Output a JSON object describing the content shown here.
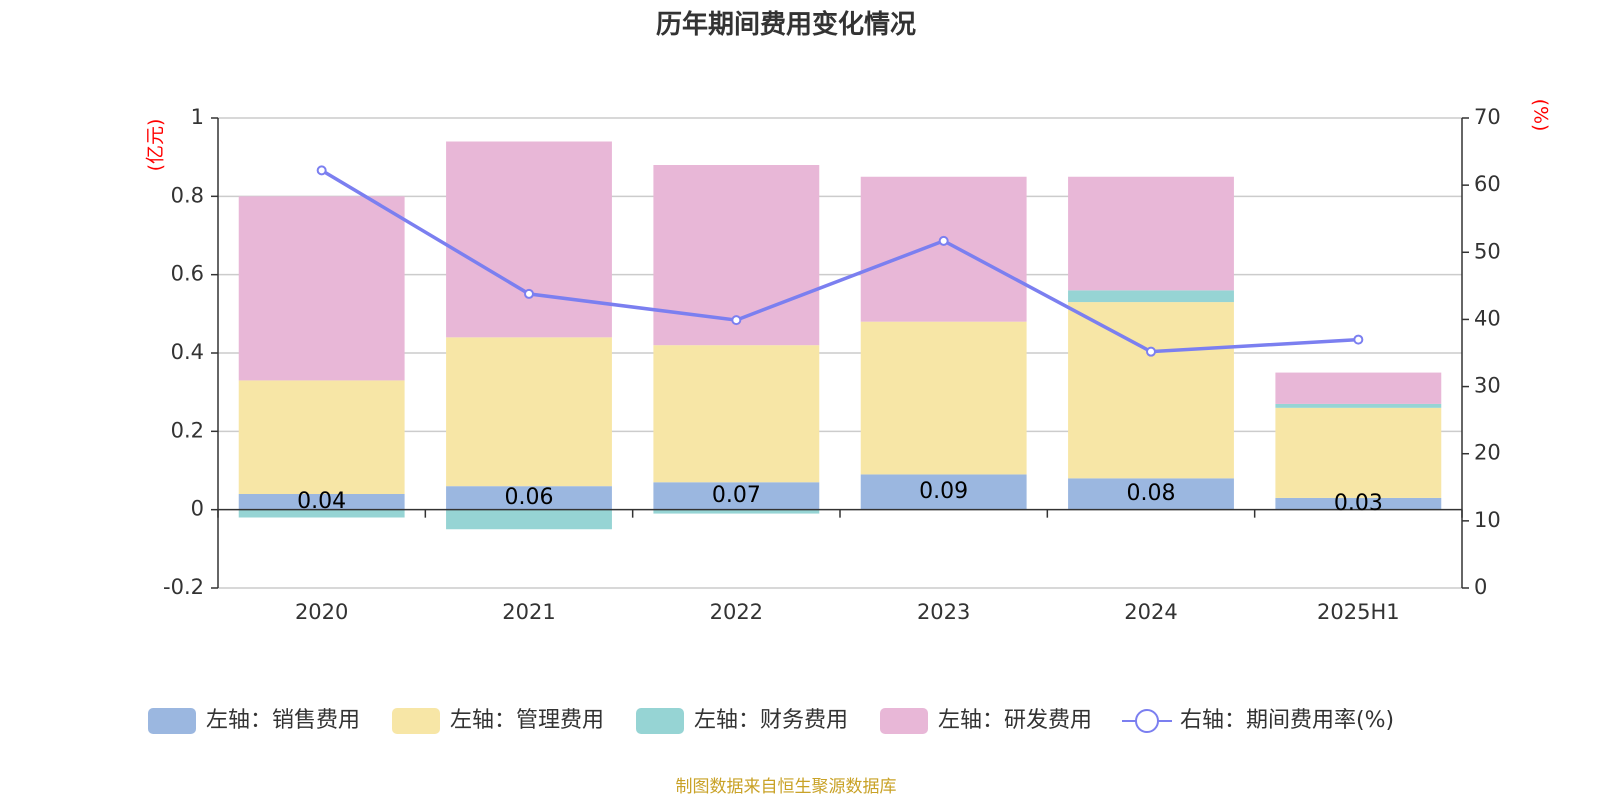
{
  "chart_data": {
    "type": "bar",
    "title": "历年期间费用变化情况",
    "categories": [
      "2020",
      "2021",
      "2022",
      "2023",
      "2024",
      "2025H1"
    ],
    "y_left": {
      "unit": "(亿元)",
      "ylim": [
        -0.2,
        1
      ],
      "ticks": [
        "1",
        "0.8",
        "0.6",
        "0.4",
        "0.2",
        "0",
        "-0.2"
      ],
      "tick_values": [
        1,
        0.8,
        0.6,
        0.4,
        0.2,
        0,
        -0.2
      ]
    },
    "y_right": {
      "unit": "(%)",
      "ylim": [
        0,
        70
      ],
      "ticks": [
        "70",
        "60",
        "50",
        "40",
        "30",
        "20",
        "10",
        "0"
      ],
      "tick_values": [
        70,
        60,
        50,
        40,
        30,
        20,
        10,
        0
      ]
    },
    "series": [
      {
        "name": "左轴：销售费用",
        "axis": "left",
        "stack": true,
        "color": "#9bb7e0",
        "values": [
          0.04,
          0.06,
          0.07,
          0.09,
          0.08,
          0.03
        ],
        "labels": [
          "0.04",
          "0.06",
          "0.07",
          "0.09",
          "0.08",
          "0.03"
        ]
      },
      {
        "name": "左轴：管理费用",
        "axis": "left",
        "stack": true,
        "color": "#f7e6a6",
        "values": [
          0.29,
          0.38,
          0.35,
          0.39,
          0.45,
          0.23
        ]
      },
      {
        "name": "左轴：财务费用",
        "axis": "left",
        "stack": true,
        "color": "#96d4d4",
        "values": [
          -0.02,
          -0.05,
          -0.01,
          0.0,
          0.03,
          0.01
        ]
      },
      {
        "name": "左轴：研发费用",
        "axis": "left",
        "stack": true,
        "color": "#e8b7d7",
        "values": [
          0.47,
          0.5,
          0.46,
          0.37,
          0.29,
          0.08
        ]
      },
      {
        "name": "右轴：期间费用率(%)",
        "axis": "right",
        "type": "line",
        "color": "#7b7ff0",
        "values": [
          62.2,
          43.8,
          39.9,
          51.7,
          35.2,
          37.0
        ]
      }
    ],
    "grid": true,
    "legend_position": "bottom"
  },
  "footer": "制图数据来自恒生聚源数据库"
}
